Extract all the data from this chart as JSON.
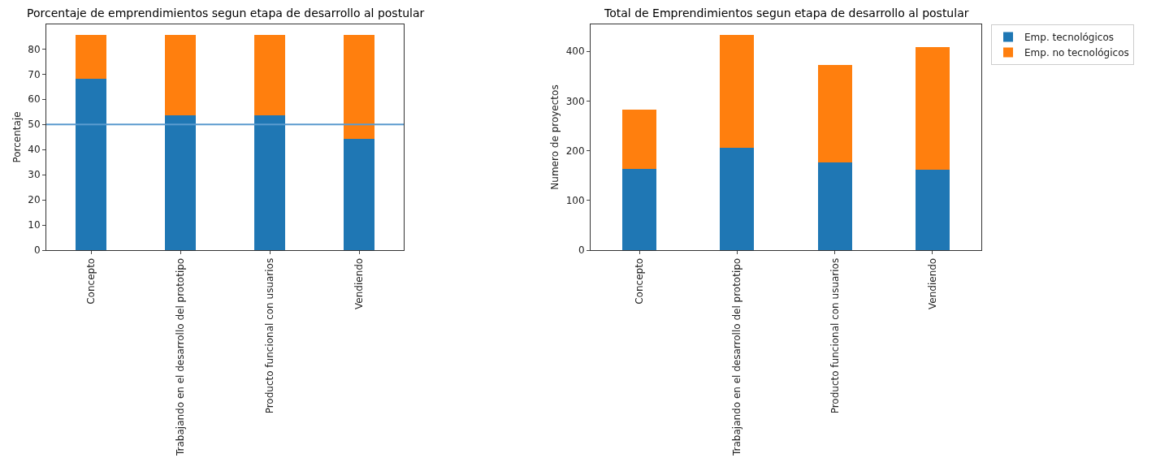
{
  "chart_data": [
    {
      "type": "bar",
      "stacked": true,
      "title": "Porcentaje de emprendimientos segun etapa de desarrollo al postular",
      "ylabel": "Porcentaje",
      "categories": [
        "Concepto",
        "Trabajando en el desarrollo del prototipo",
        "Producto funcional con usuarios",
        "Vendiendo"
      ],
      "series": [
        {
          "color": "#1f77b4",
          "values": [
            68.2,
            53.7,
            53.7,
            44.3
          ]
        },
        {
          "color": "#ff7f0e",
          "values": [
            17.3,
            31.8,
            31.8,
            41.2
          ]
        }
      ],
      "ylim": [
        0,
        89.8
      ],
      "yticks": [
        0,
        10,
        20,
        30,
        40,
        50,
        60,
        70,
        80
      ],
      "legend": false,
      "ref_lines": [
        {
          "axis": "y",
          "value": 50,
          "color": "#5b9bcf"
        }
      ]
    },
    {
      "type": "bar",
      "stacked": true,
      "title": "Total de Emprendimientos segun etapa de desarrollo al postular",
      "ylabel": "Numero de proyectos",
      "categories": [
        "Concepto",
        "Trabajando en el desarrollo del prototipo",
        "Producto funcional con usuarios",
        "Vendiendo"
      ],
      "series": [
        {
          "name": "Emp. tecnológicos",
          "color": "#1f77b4",
          "values": [
            163,
            206,
            176,
            161
          ]
        },
        {
          "name": "Emp. no tecnológicos",
          "color": "#ff7f0e",
          "values": [
            120,
            226,
            196,
            248
          ]
        }
      ],
      "ylim": [
        0,
        454
      ],
      "yticks": [
        0,
        100,
        200,
        300,
        400
      ],
      "legend": "top right"
    }
  ]
}
